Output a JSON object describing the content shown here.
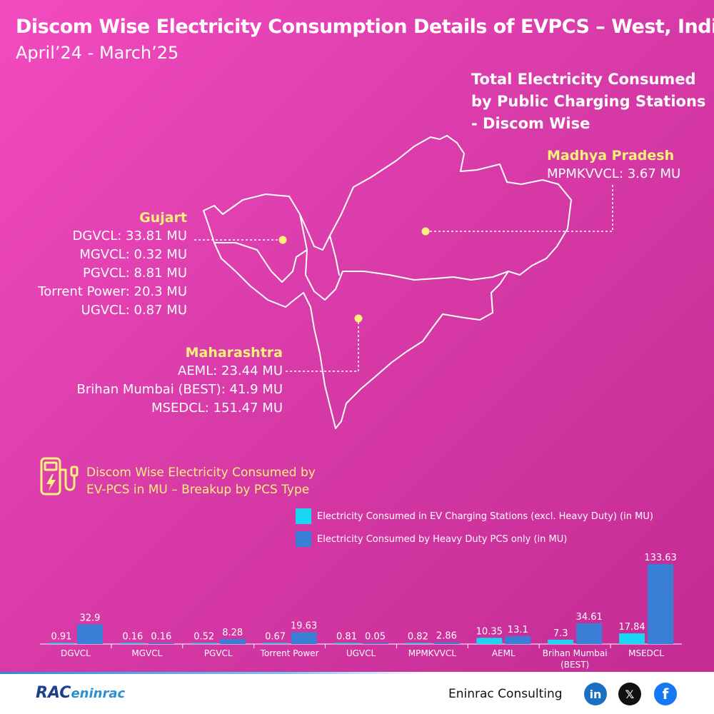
{
  "header": {
    "title": "Discom Wise Electricity Consumption Details of EVPCS – West, India",
    "subtitle": "April’24 - March’25"
  },
  "total_heading": [
    "Total Electricity Consumed",
    "by Public Charging Stations",
    "- Discom Wise"
  ],
  "regions": {
    "gujarat": {
      "name": "Gujart",
      "lines": [
        "DGVCL: 33.81 MU",
        "MGVCL: 0.32 MU",
        "PGVCL: 8.81 MU",
        "Torrent Power: 20.3 MU",
        "UGVCL: 0.87 MU"
      ]
    },
    "mp": {
      "name": "Madhya Pradesh",
      "lines": [
        "MPMKVVCL: 3.67 MU"
      ]
    },
    "maharashtra": {
      "name": "Maharashtra",
      "lines": [
        "AEML: 23.44 MU",
        "Brihan Mumbai (BEST): 41.9 MU",
        "MSEDCL: 151.47 MU"
      ]
    }
  },
  "section_title": [
    "Discom Wise Electricity Consumed by",
    "EV-PCS in MU – Breakup by PCS Type"
  ],
  "icons": {
    "charger": "ev-charger-icon",
    "linkedin": "linkedin-icon",
    "x": "x-icon",
    "facebook": "facebook-icon"
  },
  "colors": {
    "series1": "#19d6f2",
    "series2": "#3a7fd6",
    "accent_yellow": "#fbf07a"
  },
  "chart_data": {
    "type": "bar",
    "categories": [
      "DGVCL",
      "MGVCL",
      "PGVCL",
      "Torrent Power",
      "UGVCL",
      "MPMKVVCL",
      "AEML",
      "Brihan Mumbai (BEST)",
      "MSEDCL"
    ],
    "series": [
      {
        "name": "Electricity Consumed in EV Charging Stations (excl. Heavy Duty) (in MU)",
        "values": [
          0.91,
          0.16,
          0.52,
          0.67,
          0.81,
          0.82,
          10.35,
          7.3,
          17.84
        ]
      },
      {
        "name": "Electricity Consumed by Heavy Duty PCS only (in MU)",
        "values": [
          32.9,
          0.16,
          8.28,
          19.63,
          0.05,
          2.86,
          13.1,
          34.61,
          133.63
        ]
      }
    ],
    "ylim": [
      0,
      133.63
    ],
    "grid": false,
    "legend": "top-right"
  },
  "footer": {
    "logo_main": "RAC",
    "logo_sub": "eninrac",
    "company": "Eninrac Consulting",
    "linkedin": "in",
    "x": "𝕏",
    "facebook": "f"
  }
}
